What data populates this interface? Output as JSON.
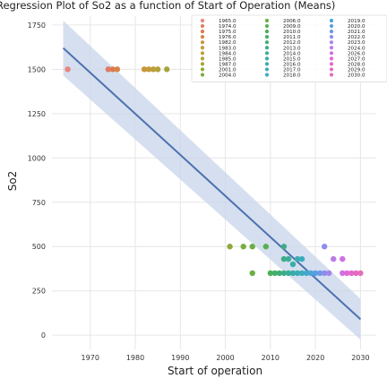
{
  "chart_data": {
    "type": "scatter",
    "title": "Regression Plot of So2 as a function of Start of Operation (Means)",
    "xlabel": "Start of operation",
    "ylabel": "So2",
    "xlim": [
      1961.5,
      2033.5
    ],
    "ylim": [
      -80,
      1800
    ],
    "xticks": [
      1970,
      1980,
      1990,
      2000,
      2010,
      2020,
      2030
    ],
    "yticks": [
      0,
      250,
      500,
      750,
      1000,
      1250,
      1500,
      1750
    ],
    "grid": true,
    "legend_position": "top-right",
    "legend_columns": 3,
    "series": [
      {
        "name": "1965.0",
        "color": "#e8857a",
        "x": [
          1965
        ],
        "y": [
          1500
        ]
      },
      {
        "name": "1974.0",
        "color": "#e07a62",
        "x": [
          1974
        ],
        "y": [
          1500
        ]
      },
      {
        "name": "1975.0",
        "color": "#dc7a52",
        "x": [
          1975
        ],
        "y": [
          1500
        ]
      },
      {
        "name": "1976.0",
        "color": "#d88248",
        "x": [
          1976
        ],
        "y": [
          1500
        ]
      },
      {
        "name": "1982.0",
        "color": "#c9953e",
        "x": [
          1982
        ],
        "y": [
          1500
        ]
      },
      {
        "name": "1983.0",
        "color": "#c39a3c",
        "x": [
          1983
        ],
        "y": [
          1500
        ]
      },
      {
        "name": "1984.0",
        "color": "#bb9f3b",
        "x": [
          1984
        ],
        "y": [
          1500
        ]
      },
      {
        "name": "1985.0",
        "color": "#b3a23b",
        "x": [
          1985
        ],
        "y": [
          1500
        ]
      },
      {
        "name": "1987.0",
        "color": "#a9a43a",
        "x": [
          1987
        ],
        "y": [
          1500
        ]
      },
      {
        "name": "2001.0",
        "color": "#8ea83a",
        "x": [
          2001
        ],
        "y": [
          500
        ]
      },
      {
        "name": "2004.0",
        "color": "#7cab3f",
        "x": [
          2004
        ],
        "y": [
          500
        ]
      },
      {
        "name": "2006.0",
        "color": "#6aae46",
        "x": [
          2006,
          2006
        ],
        "y": [
          500,
          350
        ]
      },
      {
        "name": "2009.0",
        "color": "#56b04f",
        "x": [
          2009
        ],
        "y": [
          500
        ]
      },
      {
        "name": "2010.0",
        "color": "#4ab058",
        "x": [
          2010
        ],
        "y": [
          350
        ]
      },
      {
        "name": "2011.0",
        "color": "#44af66",
        "x": [
          2011
        ],
        "y": [
          350
        ]
      },
      {
        "name": "2012.0",
        "color": "#3fae76",
        "x": [
          2012
        ],
        "y": [
          350
        ]
      },
      {
        "name": "2013.0",
        "color": "#3cae86",
        "x": [
          2013,
          2013,
          2013
        ],
        "y": [
          500,
          430,
          350
        ]
      },
      {
        "name": "2014.0",
        "color": "#3aae96",
        "x": [
          2014,
          2014
        ],
        "y": [
          430,
          350
        ]
      },
      {
        "name": "2015.0",
        "color": "#39ada4",
        "x": [
          2015,
          2015
        ],
        "y": [
          350,
          400
        ]
      },
      {
        "name": "2016.0",
        "color": "#3aacb2",
        "x": [
          2016,
          2016
        ],
        "y": [
          350,
          430
        ]
      },
      {
        "name": "2017.0",
        "color": "#3cabbe",
        "x": [
          2017,
          2017
        ],
        "y": [
          350,
          430
        ]
      },
      {
        "name": "2018.0",
        "color": "#41a9ca",
        "x": [
          2018
        ],
        "y": [
          350
        ]
      },
      {
        "name": "2019.0",
        "color": "#4aa5d6",
        "x": [
          2019
        ],
        "y": [
          350
        ]
      },
      {
        "name": "2020.0",
        "color": "#569fe0",
        "x": [
          2020
        ],
        "y": [
          350
        ]
      },
      {
        "name": "2021.0",
        "color": "#6d97e8",
        "x": [
          2021
        ],
        "y": [
          350
        ]
      },
      {
        "name": "2022.0",
        "color": "#8b8eec",
        "x": [
          2022,
          2022
        ],
        "y": [
          500,
          350
        ]
      },
      {
        "name": "2023.0",
        "color": "#a585ec",
        "x": [
          2023
        ],
        "y": [
          350
        ]
      },
      {
        "name": "2024.0",
        "color": "#bb7ce8",
        "x": [
          2024
        ],
        "y": [
          430
        ]
      },
      {
        "name": "2026.0",
        "color": "#d070e2",
        "x": [
          2026,
          2026
        ],
        "y": [
          430,
          350
        ]
      },
      {
        "name": "2027.0",
        "color": "#e069d8",
        "x": [
          2027
        ],
        "y": [
          350
        ]
      },
      {
        "name": "2028.0",
        "color": "#e468cc",
        "x": [
          2028
        ],
        "y": [
          350
        ]
      },
      {
        "name": "2029.0",
        "color": "#e56bc2",
        "x": [
          2029
        ],
        "y": [
          350
        ]
      },
      {
        "name": "2030.0",
        "color": "#e56fb8",
        "x": [
          2030
        ],
        "y": [
          350
        ]
      }
    ],
    "regression": {
      "color": "#4c72b0",
      "x": [
        1964,
        2030
      ],
      "y": [
        1620,
        90
      ],
      "ci_upper": [
        1775,
        205
      ],
      "ci_lower": [
        1465,
        -25
      ],
      "ci_color": "#c8d4ea"
    }
  }
}
